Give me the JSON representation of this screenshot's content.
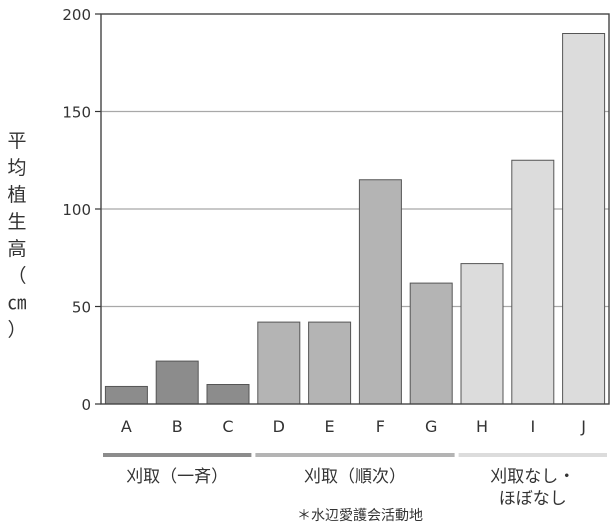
{
  "chart_data": {
    "type": "bar",
    "ylabel_chars": [
      "平",
      "均",
      "植",
      "生",
      "高",
      "（",
      "㎝",
      "）"
    ],
    "ylim": [
      0,
      200
    ],
    "yticks": [
      0,
      50,
      100,
      150,
      200
    ],
    "grid": true,
    "categories": [
      "A",
      "B",
      "C",
      "D",
      "E",
      "F",
      "G",
      "H",
      "I",
      "J"
    ],
    "values": [
      9,
      22,
      10,
      42,
      42,
      115,
      62,
      72,
      125,
      190
    ],
    "groups": [
      {
        "label": "刈取（一斉）",
        "members": [
          "A",
          "B",
          "C"
        ],
        "color": "#8c8c8c"
      },
      {
        "label": "刈取（順次）",
        "members": [
          "D",
          "E",
          "F",
          "G"
        ],
        "color": "#b4b4b4"
      },
      {
        "label": "刈取なし・\nほぼなし",
        "members": [
          "H",
          "I",
          "J"
        ],
        "color": "#dcdcdc"
      }
    ]
  },
  "footnote": "＊水辺愛護会活動地"
}
